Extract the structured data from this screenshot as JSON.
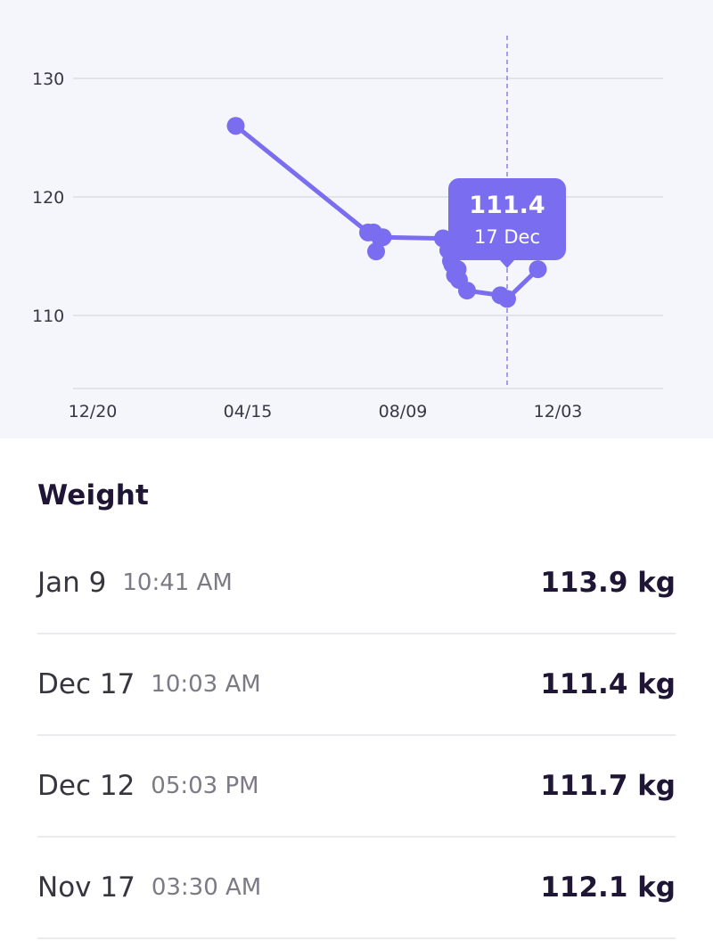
{
  "chart_data": {
    "type": "line",
    "x_ticks": [
      "12/20",
      "04/15",
      "08/09",
      "12/03"
    ],
    "y_ticks": [
      110,
      120,
      130
    ],
    "ylim": [
      104,
      134
    ],
    "x_domain_days": [
      -8,
      397
    ],
    "points": [
      {
        "x": 107,
        "y": 126.0
      },
      {
        "x": 206,
        "y": 117.0
      },
      {
        "x": 210,
        "y": 117.0
      },
      {
        "x": 212,
        "y": 115.4
      },
      {
        "x": 217,
        "y": 116.6
      },
      {
        "x": 262,
        "y": 116.5
      },
      {
        "x": 266,
        "y": 115.5
      },
      {
        "x": 268,
        "y": 114.6
      },
      {
        "x": 269,
        "y": 114.3
      },
      {
        "x": 271,
        "y": 113.4
      },
      {
        "x": 273,
        "y": 113.9
      },
      {
        "x": 274,
        "y": 113.0
      },
      {
        "x": 280,
        "y": 112.1
      },
      {
        "x": 305,
        "y": 111.7
      },
      {
        "x": 310,
        "y": 111.4
      },
      {
        "x": 333,
        "y": 113.9
      }
    ],
    "selected_index": 14,
    "grid": true,
    "line_color": "#7b6df0"
  },
  "tooltip": {
    "value": "111.4",
    "date": "17 Dec"
  },
  "section_title": "Weight",
  "entries": [
    {
      "date": "Jan 9",
      "time": "10:41 AM",
      "value": "113.9 kg"
    },
    {
      "date": "Dec 17",
      "time": "10:03 AM",
      "value": "111.4 kg"
    },
    {
      "date": "Dec 12",
      "time": "05:03 PM",
      "value": "111.7 kg"
    },
    {
      "date": "Nov 17",
      "time": "03:30 AM",
      "value": "112.1 kg"
    }
  ]
}
